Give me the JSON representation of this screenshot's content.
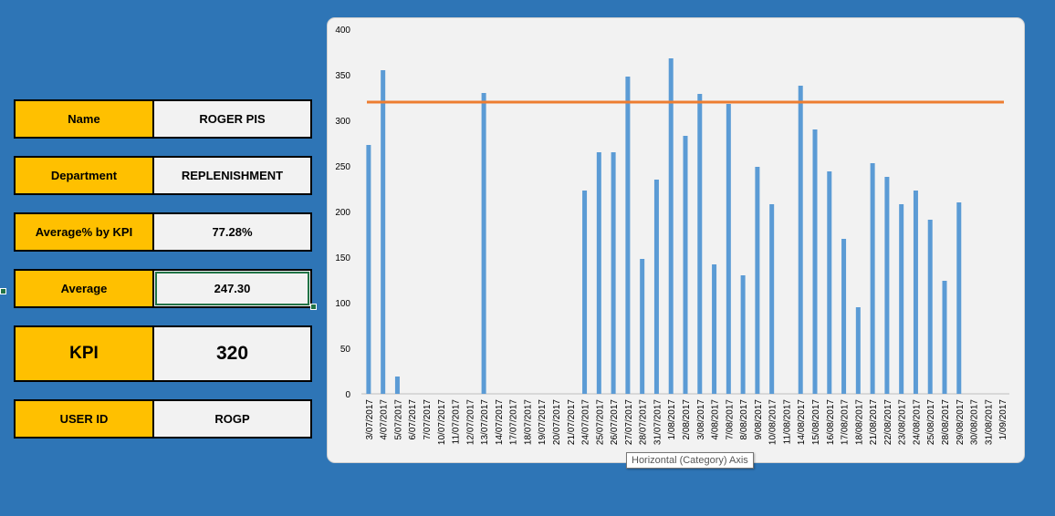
{
  "fields": [
    {
      "label": "Name",
      "value": "ROGER PIS"
    },
    {
      "label": "Department",
      "value": "REPLENISHMENT"
    },
    {
      "label": "Average% by KPI",
      "value": "77.28%"
    },
    {
      "label": "Average",
      "value": "247.30"
    },
    {
      "label": "KPI",
      "value": "320"
    },
    {
      "label": "USER ID",
      "value": "ROGP"
    }
  ],
  "tooltip": "Horizontal (Category) Axis",
  "colors": {
    "background": "#2E75B6",
    "label_fill": "#FFC000",
    "bar": "#5B9BD5",
    "kpi_line": "#ED7D31"
  },
  "chart_data": {
    "type": "bar",
    "categories": [
      "3/07/2017",
      "4/07/2017",
      "5/07/2017",
      "6/07/2017",
      "7/07/2017",
      "10/07/2017",
      "11/07/2017",
      "12/07/2017",
      "13/07/2017",
      "14/07/2017",
      "17/07/2017",
      "18/07/2017",
      "19/07/2017",
      "20/07/2017",
      "21/07/2017",
      "24/07/2017",
      "25/07/2017",
      "26/07/2017",
      "27/07/2017",
      "28/07/2017",
      "31/07/2017",
      "1/08/2017",
      "2/08/2017",
      "3/08/2017",
      "4/08/2017",
      "7/08/2017",
      "8/08/2017",
      "9/08/2017",
      "10/08/2017",
      "11/08/2017",
      "14/08/2017",
      "15/08/2017",
      "16/08/2017",
      "17/08/2017",
      "18/08/2017",
      "21/08/2017",
      "22/08/2017",
      "23/08/2017",
      "24/08/2017",
      "25/08/2017",
      "28/08/2017",
      "29/08/2017",
      "30/08/2017",
      "31/08/2017",
      "1/09/2017"
    ],
    "series": [
      {
        "values": [
          273,
          355,
          19,
          0,
          0,
          0,
          0,
          0,
          330,
          0,
          0,
          0,
          0,
          0,
          0,
          223,
          265,
          265,
          348,
          148,
          235,
          368,
          283,
          329,
          142,
          318,
          130,
          249,
          208,
          0,
          338,
          290,
          244,
          170,
          95,
          253,
          238,
          208,
          223,
          191,
          124,
          210,
          0,
          0,
          0
        ]
      },
      {
        "type": "line",
        "values": [
          320,
          320,
          320,
          320,
          320,
          320,
          320,
          320,
          320,
          320,
          320,
          320,
          320,
          320,
          320,
          320,
          320,
          320,
          320,
          320,
          320,
          320,
          320,
          320,
          320,
          320,
          320,
          320,
          320,
          320,
          320,
          320,
          320,
          320,
          320,
          320,
          320,
          320,
          320,
          320,
          320,
          320,
          320,
          320,
          320
        ]
      }
    ],
    "ylim": [
      0,
      400
    ],
    "yticks": [
      0,
      50,
      100,
      150,
      200,
      250,
      300,
      350,
      400
    ],
    "title": "",
    "xlabel": "",
    "ylabel": "",
    "grid": false
  }
}
